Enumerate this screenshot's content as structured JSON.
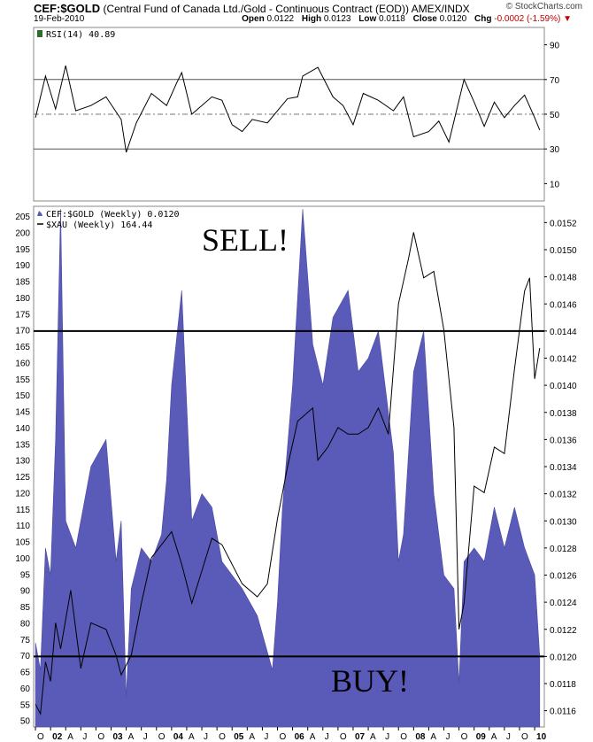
{
  "header": {
    "symbol": "CEF:$GOLD",
    "description": "(Central Fund of Canada Ltd./Gold - Continuous Contract (EOD))",
    "exchange": "AMEX/INDX",
    "date": "19-Feb-2010",
    "brand": "© StockCharts.com",
    "open_label": "Open",
    "open": "0.0122",
    "high_label": "High",
    "high": "0.0123",
    "low_label": "Low",
    "low": "0.0118",
    "close_label": "Close",
    "close": "0.0120",
    "chg_label": "Chg",
    "chg": "-0.0002 (-1.59%)"
  },
  "chart_data": [
    {
      "type": "line",
      "legend": "RSI(14) 40.89",
      "yticks": [
        10,
        30,
        50,
        70,
        90
      ],
      "ylim": [
        0,
        100
      ],
      "reference_lines": [
        30,
        50,
        70
      ],
      "x": [
        "2001-10",
        "2001-12",
        "2002-02",
        "2002-04",
        "2002-06",
        "2002-09",
        "2002-12",
        "2003-03",
        "2003-04",
        "2003-06",
        "2003-09",
        "2003-12",
        "2004-02",
        "2004-03",
        "2004-05",
        "2004-09",
        "2004-11",
        "2005-01",
        "2005-03",
        "2005-05",
        "2005-08",
        "2005-10",
        "2005-12",
        "2006-02",
        "2006-03",
        "2006-06",
        "2006-09",
        "2006-11",
        "2007-01",
        "2007-03",
        "2007-06",
        "2007-09",
        "2007-11",
        "2008-01",
        "2008-04",
        "2008-06",
        "2008-08",
        "2008-10",
        "2008-11",
        "2009-01",
        "2009-03",
        "2009-05",
        "2009-07",
        "2009-09",
        "2009-11",
        "2010-01",
        "2010-02"
      ],
      "values": [
        48,
        72,
        53,
        78,
        52,
        55,
        60,
        47,
        28,
        45,
        62,
        55,
        68,
        74,
        50,
        60,
        58,
        44,
        40,
        47,
        45,
        52,
        59,
        60,
        72,
        77,
        60,
        55,
        44,
        62,
        58,
        52,
        60,
        37,
        40,
        46,
        34,
        58,
        70,
        57,
        43,
        57,
        48,
        55,
        61,
        48,
        40.89
      ]
    },
    {
      "type": "area",
      "title": "CEF:$GOLD (Weekly) 0.0120",
      "y2label_series": "$XAU (Weekly) 164.44",
      "left_axis_ticks": [
        50,
        55,
        60,
        65,
        70,
        75,
        80,
        85,
        90,
        95,
        100,
        105,
        110,
        115,
        120,
        125,
        130,
        135,
        140,
        145,
        150,
        155,
        160,
        165,
        170,
        175,
        180,
        185,
        190,
        195,
        200,
        205
      ],
      "right_axis_ticks": [
        "0.0116",
        "0.0118",
        "0.0120",
        "0.0122",
        "0.0124",
        "0.0126",
        "0.0128",
        "0.0130",
        "0.0132",
        "0.0134",
        "0.0136",
        "0.0138",
        "0.0140",
        "0.0142",
        "0.0144",
        "0.0146",
        "0.0148",
        "0.0150",
        "0.0152"
      ],
      "ratio_ylim": [
        0.01148,
        0.01532
      ],
      "xau_ylim": [
        48,
        208
      ],
      "x_tick_labels": [
        "O",
        "02",
        "A",
        "J",
        "O",
        "03",
        "A",
        "J",
        "O",
        "04",
        "A",
        "J",
        "O",
        "05",
        "A",
        "J",
        "O",
        "06",
        "A",
        "J",
        "O",
        "07",
        "A",
        "J",
        "O",
        "08",
        "A",
        "J",
        "O",
        "09",
        "A",
        "J",
        "O",
        "10"
      ],
      "series": [
        {
          "name": "CEF:$GOLD (Weekly) 0.0120",
          "color": "#5a5ab8",
          "x": [
            "2001-10",
            "2001-11",
            "2001-12",
            "2002-01",
            "2002-02",
            "2002-03",
            "2002-04",
            "2002-06",
            "2002-09",
            "2002-12",
            "2003-02",
            "2003-03",
            "2003-04",
            "2003-05",
            "2003-07",
            "2003-09",
            "2003-11",
            "2003-12",
            "2004-01",
            "2004-03",
            "2004-05",
            "2004-07",
            "2004-09",
            "2004-11",
            "2005-01",
            "2005-03",
            "2005-06",
            "2005-09",
            "2005-10",
            "2005-11",
            "2006-01",
            "2006-03",
            "2006-05",
            "2006-07",
            "2006-09",
            "2006-12",
            "2007-02",
            "2007-04",
            "2007-06",
            "2007-09",
            "2007-10",
            "2007-11",
            "2008-01",
            "2008-03",
            "2008-05",
            "2008-07",
            "2008-09",
            "2008-10",
            "2008-11",
            "2009-01",
            "2009-03",
            "2009-05",
            "2009-07",
            "2009-09",
            "2009-11",
            "2010-01",
            "2010-02"
          ],
          "values": [
            0.0121,
            0.0119,
            0.0128,
            0.0126,
            0.0136,
            0.0153,
            0.013,
            0.0128,
            0.0134,
            0.0136,
            0.0127,
            0.013,
            0.0117,
            0.0125,
            0.0128,
            0.0127,
            0.0129,
            0.0133,
            0.014,
            0.0147,
            0.013,
            0.0132,
            0.0131,
            0.0127,
            0.0126,
            0.0125,
            0.0123,
            0.0119,
            0.0124,
            0.0131,
            0.014,
            0.0153,
            0.0143,
            0.014,
            0.0145,
            0.0147,
            0.0141,
            0.0142,
            0.0144,
            0.0135,
            0.0127,
            0.0129,
            0.0141,
            0.0144,
            0.0132,
            0.0126,
            0.0125,
            0.0118,
            0.0127,
            0.0128,
            0.0127,
            0.0131,
            0.0128,
            0.0131,
            0.0128,
            0.0126,
            0.012
          ]
        },
        {
          "name": "$XAU (Weekly) 164.44",
          "color": "#000000",
          "x": [
            "2001-10",
            "2001-11",
            "2001-12",
            "2002-01",
            "2002-02",
            "2002-03",
            "2002-05",
            "2002-07",
            "2002-09",
            "2002-12",
            "2003-02",
            "2003-03",
            "2003-05",
            "2003-07",
            "2003-09",
            "2003-11",
            "2004-01",
            "2004-03",
            "2004-05",
            "2004-07",
            "2004-09",
            "2004-11",
            "2005-01",
            "2005-03",
            "2005-06",
            "2005-08",
            "2005-10",
            "2005-12",
            "2006-02",
            "2006-05",
            "2006-06",
            "2006-08",
            "2006-10",
            "2006-12",
            "2007-02",
            "2007-04",
            "2007-06",
            "2007-08",
            "2007-10",
            "2007-12",
            "2008-01",
            "2008-03",
            "2008-05",
            "2008-07",
            "2008-09",
            "2008-10",
            "2008-11",
            "2009-01",
            "2009-03",
            "2009-05",
            "2009-07",
            "2009-09",
            "2009-11",
            "2009-12",
            "2010-01",
            "2010-02"
          ],
          "values": [
            55,
            52,
            68,
            62,
            80,
            72,
            90,
            66,
            80,
            78,
            70,
            64,
            70,
            86,
            100,
            104,
            108,
            98,
            86,
            96,
            106,
            104,
            98,
            92,
            88,
            92,
            112,
            128,
            142,
            146,
            130,
            134,
            140,
            138,
            138,
            140,
            146,
            138,
            178,
            192,
            200,
            186,
            188,
            170,
            140,
            78,
            86,
            122,
            120,
            134,
            132,
            158,
            182,
            186,
            155,
            164.44
          ]
        }
      ],
      "annotations": [
        {
          "text": "SELL!",
          "ratio_level": 0.0144
        },
        {
          "text": "BUY!",
          "ratio_level": 0.012
        }
      ]
    }
  ]
}
